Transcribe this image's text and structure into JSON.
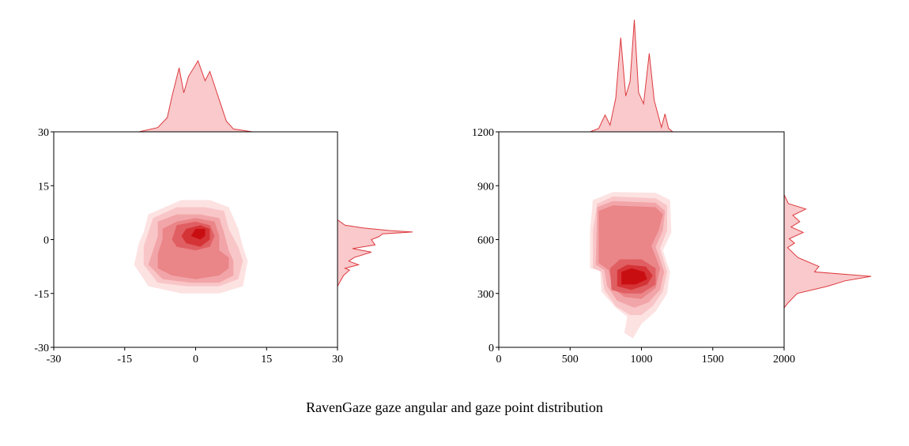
{
  "caption": "RavenGaze gaze angular and gaze point distribution",
  "colors": {
    "levels": [
      "#fde2e2",
      "#f9c6c8",
      "#f2a5a8",
      "#ea8588",
      "#e05f62",
      "#d53437",
      "#c90e12"
    ],
    "marginal_fill": "#f9c9cb",
    "marginal_line": "#dd3a3f",
    "frame": "#000000"
  },
  "chart_data": [
    {
      "type": "heatmap",
      "subtype": "2d-kde-contour-with-marginals",
      "title": "",
      "xlabel": "",
      "ylabel": "",
      "xlim": [
        -30,
        30
      ],
      "ylim": [
        -30,
        30
      ],
      "xticks": [
        "-30",
        "-15",
        "0",
        "15",
        "30"
      ],
      "yticks": [
        "30",
        "15",
        "0",
        "-15",
        "-30"
      ],
      "xtick_values": [
        -30,
        -15,
        0,
        15,
        30
      ],
      "ytick_values": [
        30,
        15,
        0,
        -15,
        -30
      ],
      "grid": false,
      "contours": [
        {
          "level": 1,
          "polygon": [
            [
              -12,
              -1
            ],
            [
              -13,
              -7
            ],
            [
              -10,
              -13
            ],
            [
              -3,
              -15
            ],
            [
              5,
              -15
            ],
            [
              10,
              -13
            ],
            [
              11,
              -6
            ],
            [
              10,
              -2
            ],
            [
              9,
              3
            ],
            [
              7,
              9
            ],
            [
              3,
              11
            ],
            [
              -3,
              11
            ],
            [
              -10,
              7
            ],
            [
              -11,
              2
            ]
          ]
        },
        {
          "level": 2,
          "polygon": [
            [
              -11,
              -2
            ],
            [
              -11,
              -7
            ],
            [
              -8,
              -12
            ],
            [
              -2,
              -13
            ],
            [
              5,
              -13
            ],
            [
              9,
              -11
            ],
            [
              10,
              -6
            ],
            [
              9,
              -2
            ],
            [
              7,
              3
            ],
            [
              6,
              8
            ],
            [
              2,
              9
            ],
            [
              -4,
              9
            ],
            [
              -9,
              6
            ],
            [
              -10,
              2
            ]
          ]
        },
        {
          "level": 3,
          "polygon": [
            [
              -9,
              -3
            ],
            [
              -10,
              -7
            ],
            [
              -7,
              -11
            ],
            [
              -1,
              -12
            ],
            [
              5,
              -12
            ],
            [
              8,
              -10
            ],
            [
              8,
              -6
            ],
            [
              7,
              -3
            ],
            [
              6,
              2
            ],
            [
              5,
              6
            ],
            [
              1,
              7
            ],
            [
              -4,
              7
            ],
            [
              -8,
              5
            ],
            [
              -8,
              1
            ]
          ]
        },
        {
          "level": 4,
          "polygon": [
            [
              -8,
              -4
            ],
            [
              -8,
              -8
            ],
            [
              -5,
              -10
            ],
            [
              0,
              -11
            ],
            [
              5,
              -10
            ],
            [
              7,
              -8
            ],
            [
              7,
              -5
            ],
            [
              5,
              -3
            ],
            [
              5,
              1
            ],
            [
              4,
              5
            ],
            [
              0,
              6
            ],
            [
              -4,
              5
            ],
            [
              -7,
              3
            ],
            [
              -7,
              0
            ]
          ]
        },
        {
          "level": 5,
          "polygon": [
            [
              -5,
              0
            ],
            [
              -4,
              4
            ],
            [
              0,
              5
            ],
            [
              3,
              4
            ],
            [
              4,
              1
            ],
            [
              3,
              -2
            ],
            [
              0,
              -3
            ],
            [
              -4,
              -2
            ]
          ]
        },
        {
          "level": 6,
          "polygon": [
            [
              -3,
              1
            ],
            [
              -2,
              3
            ],
            [
              1,
              4
            ],
            [
              3,
              3
            ],
            [
              3,
              0
            ],
            [
              1,
              -2
            ],
            [
              -2,
              -1
            ]
          ]
        },
        {
          "level": 7,
          "polygon": [
            [
              -1,
              1
            ],
            [
              0,
              3
            ],
            [
              2,
              3
            ],
            [
              2,
              1
            ],
            [
              1,
              0
            ]
          ]
        }
      ],
      "marginal_x": {
        "x": [
          -12,
          -8,
          -6,
          -5,
          -3.5,
          -2.5,
          -1.5,
          0.5,
          2,
          3,
          5,
          6.5,
          8,
          12
        ],
        "density": [
          0,
          0.06,
          0.2,
          0.5,
          0.9,
          0.55,
          0.78,
          1.0,
          0.72,
          0.85,
          0.45,
          0.15,
          0.04,
          0
        ]
      },
      "marginal_y": {
        "y": [
          5.5,
          4,
          3.2,
          2.5,
          2.1,
          1.6,
          0.8,
          0,
          -1.5,
          -2.5,
          -3.5,
          -5,
          -6,
          -7,
          -8,
          -8.5,
          -10,
          -11.5,
          -13
        ],
        "density": [
          0,
          0.1,
          0.35,
          0.7,
          1.0,
          0.6,
          0.55,
          0.45,
          0.5,
          0.2,
          0.45,
          0.22,
          0.15,
          0.28,
          0.1,
          0.16,
          0.08,
          0.04,
          0
        ]
      }
    },
    {
      "type": "heatmap",
      "subtype": "2d-kde-contour-with-marginals",
      "title": "",
      "xlabel": "",
      "ylabel": "",
      "xlim": [
        0,
        2000
      ],
      "ylim": [
        0,
        1200
      ],
      "xticks": [
        "0",
        "500",
        "1000",
        "1500",
        "2000"
      ],
      "yticks": [
        "1200",
        "900",
        "600",
        "300",
        "0"
      ],
      "xtick_values": [
        0,
        500,
        1000,
        1500,
        2000
      ],
      "ytick_values": [
        1200,
        900,
        600,
        300,
        0
      ],
      "grid": false,
      "contours": [
        {
          "level": 1,
          "polygon": [
            [
              640,
              440
            ],
            [
              640,
              650
            ],
            [
              660,
              820
            ],
            [
              800,
              865
            ],
            [
              1100,
              860
            ],
            [
              1200,
              820
            ],
            [
              1210,
              640
            ],
            [
              1150,
              540
            ],
            [
              1200,
              420
            ],
            [
              1180,
              300
            ],
            [
              1100,
              200
            ],
            [
              1000,
              130
            ],
            [
              940,
              50
            ],
            [
              880,
              80
            ],
            [
              900,
              170
            ],
            [
              820,
              220
            ],
            [
              720,
              310
            ],
            [
              710,
              430
            ]
          ]
        },
        {
          "level": 2,
          "polygon": [
            [
              660,
              440
            ],
            [
              660,
              650
            ],
            [
              690,
              800
            ],
            [
              800,
              840
            ],
            [
              1100,
              830
            ],
            [
              1180,
              790
            ],
            [
              1180,
              650
            ],
            [
              1130,
              550
            ],
            [
              1180,
              420
            ],
            [
              1150,
              310
            ],
            [
              1080,
              230
            ],
            [
              1000,
              180
            ],
            [
              920,
              180
            ],
            [
              820,
              230
            ],
            [
              740,
              320
            ],
            [
              720,
              420
            ]
          ]
        },
        {
          "level": 3,
          "polygon": [
            [
              680,
              460
            ],
            [
              690,
              780
            ],
            [
              800,
              815
            ],
            [
              1100,
              805
            ],
            [
              1165,
              760
            ],
            [
              1150,
              650
            ],
            [
              1100,
              560
            ],
            [
              1160,
              420
            ],
            [
              1130,
              320
            ],
            [
              1050,
              250
            ],
            [
              950,
              220
            ],
            [
              830,
              260
            ],
            [
              760,
              340
            ],
            [
              740,
              430
            ]
          ]
        },
        {
          "level": 4,
          "polygon": [
            [
              700,
              470
            ],
            [
              700,
              760
            ],
            [
              800,
              790
            ],
            [
              1100,
              780
            ],
            [
              1150,
              740
            ],
            [
              1120,
              650
            ],
            [
              1070,
              565
            ],
            [
              1130,
              440
            ],
            [
              1100,
              330
            ],
            [
              1000,
              270
            ],
            [
              880,
              280
            ],
            [
              800,
              330
            ],
            [
              770,
              430
            ]
          ]
        },
        {
          "level": 5,
          "polygon": [
            [
              790,
              320
            ],
            [
              780,
              440
            ],
            [
              850,
              490
            ],
            [
              1000,
              490
            ],
            [
              1100,
              440
            ],
            [
              1100,
              350
            ],
            [
              1000,
              300
            ],
            [
              880,
              300
            ]
          ]
        },
        {
          "level": 6,
          "polygon": [
            [
              830,
              340
            ],
            [
              830,
              430
            ],
            [
              900,
              460
            ],
            [
              1030,
              450
            ],
            [
              1080,
              400
            ],
            [
              1040,
              350
            ],
            [
              930,
              320
            ]
          ]
        },
        {
          "level": 7,
          "polygon": [
            [
              860,
              350
            ],
            [
              860,
              420
            ],
            [
              930,
              440
            ],
            [
              1020,
              420
            ],
            [
              1040,
              380
            ],
            [
              960,
              350
            ]
          ]
        }
      ],
      "marginal_x": {
        "x": [
          640,
          700,
          745,
          780,
          820,
          855,
          890,
          920,
          950,
          980,
          1015,
          1055,
          1090,
          1140,
          1165,
          1190,
          1220
        ],
        "density": [
          0,
          0.03,
          0.15,
          0.06,
          0.3,
          0.84,
          0.32,
          0.45,
          1.0,
          0.35,
          0.25,
          0.7,
          0.28,
          0.04,
          0.16,
          0.03,
          0
        ]
      },
      "marginal_y": {
        "y": [
          850,
          800,
          770,
          735,
          700,
          670,
          640,
          605,
          580,
          555,
          500,
          450,
          420,
          395,
          370,
          340,
          300,
          250,
          220
        ],
        "density": [
          0,
          0.05,
          0.25,
          0.1,
          0.18,
          0.08,
          0.22,
          0.06,
          0.12,
          0.04,
          0.16,
          0.4,
          0.35,
          1.0,
          0.7,
          0.5,
          0.15,
          0.05,
          0
        ]
      }
    }
  ]
}
